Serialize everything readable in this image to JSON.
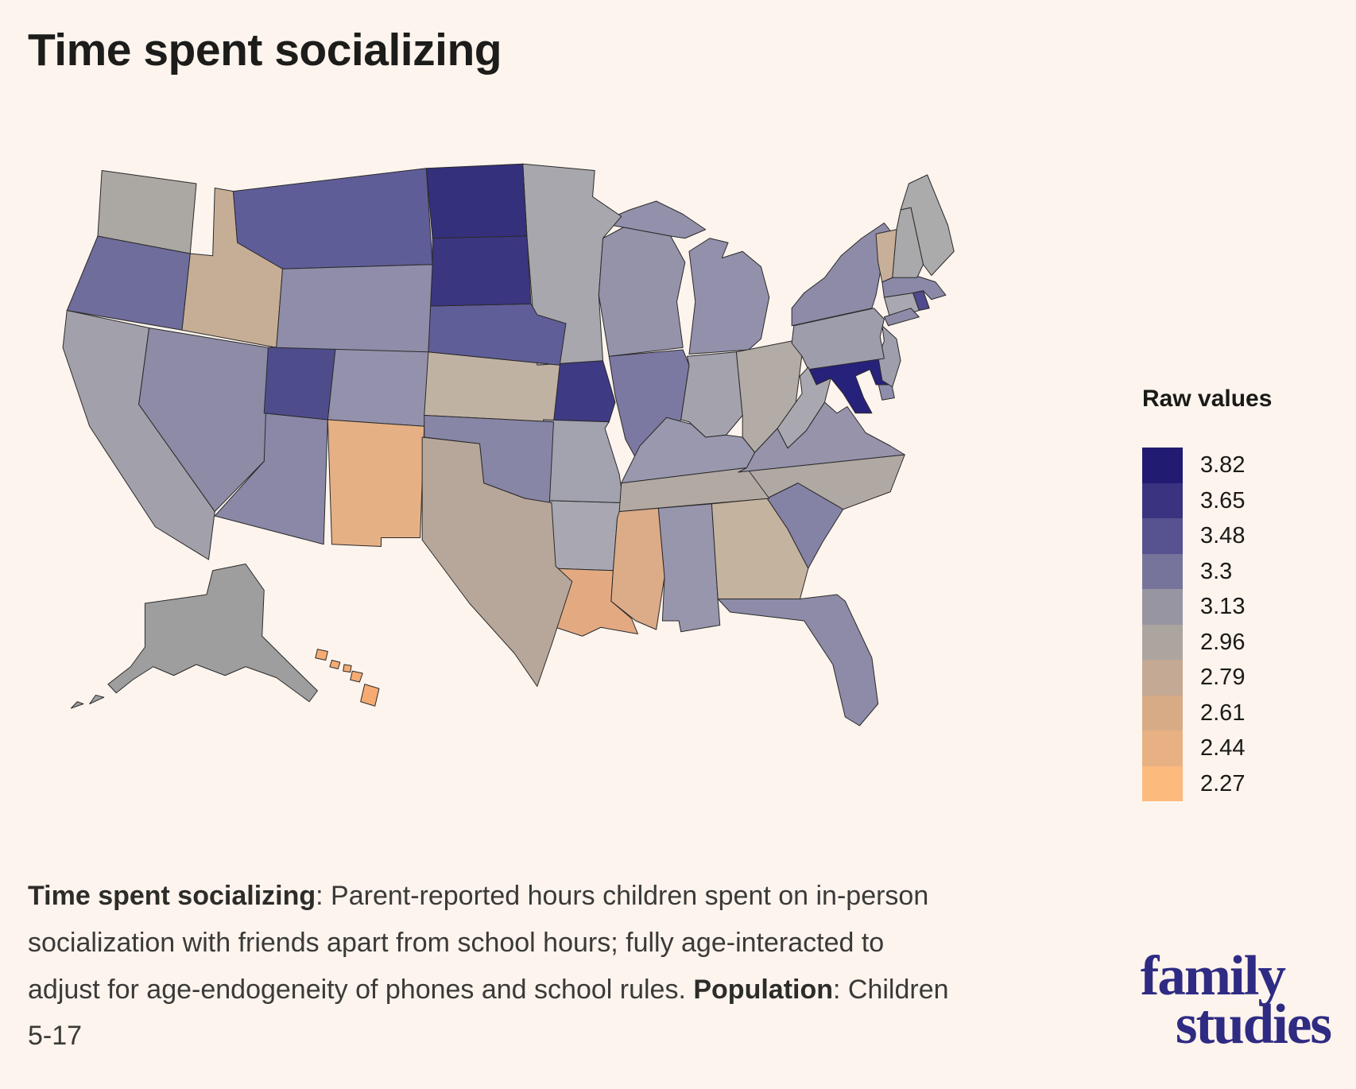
{
  "title": "Time spent socializing",
  "legend": {
    "title": "Raw values",
    "items": [
      {
        "label": "3.82",
        "color": "#221b72"
      },
      {
        "label": "3.65",
        "color": "#393380"
      },
      {
        "label": "3.48",
        "color": "#575390"
      },
      {
        "label": "3.3",
        "color": "#77749b"
      },
      {
        "label": "3.13",
        "color": "#9795a1"
      },
      {
        "label": "2.96",
        "color": "#aca49f"
      },
      {
        "label": "2.79",
        "color": "#c4a995"
      },
      {
        "label": "2.61",
        "color": "#d8ab87"
      },
      {
        "label": "2.44",
        "color": "#e8b183"
      },
      {
        "label": "2.27",
        "color": "#fcba7d"
      }
    ]
  },
  "caption": {
    "bold1": "Time spent socializing",
    "text1": ": Parent-reported hours children spent on in-person socialization with friends apart from school hours; fully age-interacted to adjust for age-endogeneity of phones and school rules. ",
    "bold2": "Population",
    "text2": ": Children 5-17"
  },
  "logo": {
    "line1": "family",
    "line2": "studies",
    "color": "#2f2b83"
  },
  "chart_data": {
    "type": "choropleth",
    "title": "Time spent socializing",
    "legend_title": "Raw values",
    "legend_values": [
      3.82,
      3.65,
      3.48,
      3.3,
      3.13,
      2.96,
      2.79,
      2.61,
      2.44,
      2.27
    ],
    "legend_colors": [
      "#221b72",
      "#393380",
      "#575390",
      "#77749b",
      "#9795a1",
      "#aca49f",
      "#c4a995",
      "#d8ab87",
      "#e8b183",
      "#fcba7d"
    ],
    "value_range": [
      2.27,
      3.82
    ],
    "background": "#fdf4ed",
    "states": [
      {
        "id": "AK",
        "name": "Alaska",
        "color": "#9e9e9e",
        "approx_value": 3.05
      },
      {
        "id": "AL",
        "name": "Alabama",
        "color": "#9896ac",
        "approx_value": 3.18
      },
      {
        "id": "AR",
        "name": "Arkansas",
        "color": "#a9a8b2",
        "approx_value": 3.12
      },
      {
        "id": "AZ",
        "name": "Arizona",
        "color": "#8a88a6",
        "approx_value": 3.28
      },
      {
        "id": "CA",
        "name": "California",
        "color": "#a2a1ab",
        "approx_value": 3.13
      },
      {
        "id": "CO",
        "name": "Colorado",
        "color": "#9391ab",
        "approx_value": 3.2
      },
      {
        "id": "CT",
        "name": "Connecticut",
        "color": "#a9a8b0",
        "approx_value": 3.13
      },
      {
        "id": "DE",
        "name": "Delaware",
        "color": "#8f8dac",
        "approx_value": 3.22
      },
      {
        "id": "FL",
        "name": "Florida",
        "color": "#8d8ba8",
        "approx_value": 3.25
      },
      {
        "id": "GA",
        "name": "Georgia",
        "color": "#c4b39f",
        "approx_value": 2.8
      },
      {
        "id": "HI",
        "name": "Hawaii",
        "color": "#f5ab72",
        "approx_value": 2.3
      },
      {
        "id": "IA",
        "name": "Iowa",
        "color": "#3e3a83",
        "approx_value": 3.68
      },
      {
        "id": "ID",
        "name": "Idaho",
        "color": "#c6ae96",
        "approx_value": 2.78
      },
      {
        "id": "IL",
        "name": "Illinois",
        "color": "#7b79a2",
        "approx_value": 3.35
      },
      {
        "id": "IN",
        "name": "Indiana",
        "color": "#a3a2ad",
        "approx_value": 3.12
      },
      {
        "id": "KS",
        "name": "Kansas",
        "color": "#c0b2a3",
        "approx_value": 2.8
      },
      {
        "id": "KY",
        "name": "Kentucky",
        "color": "#9a98ae",
        "approx_value": 3.17
      },
      {
        "id": "LA",
        "name": "Louisiana",
        "color": "#e3aa82",
        "approx_value": 2.45
      },
      {
        "id": "MA",
        "name": "Massachusetts",
        "color": "#8b89a7",
        "approx_value": 3.25
      },
      {
        "id": "MD",
        "name": "Maryland",
        "color": "#26217a",
        "approx_value": 3.82
      },
      {
        "id": "ME",
        "name": "Maine",
        "color": "#ababab",
        "approx_value": 3.1
      },
      {
        "id": "MI",
        "name": "Michigan",
        "color": "#9290aa",
        "approx_value": 3.2
      },
      {
        "id": "MN",
        "name": "Minnesota",
        "color": "#a8a7ad",
        "approx_value": 3.13
      },
      {
        "id": "MO",
        "name": "Missouri",
        "color": "#a3a2af",
        "approx_value": 3.13
      },
      {
        "id": "MS",
        "name": "Mississippi",
        "color": "#dcab88",
        "approx_value": 2.55
      },
      {
        "id": "MT",
        "name": "Montana",
        "color": "#5f5d98",
        "approx_value": 3.45
      },
      {
        "id": "NC",
        "name": "North Carolina",
        "color": "#b0a8a3",
        "approx_value": 2.95
      },
      {
        "id": "ND",
        "name": "North Dakota",
        "color": "#34307c",
        "approx_value": 3.75
      },
      {
        "id": "NE",
        "name": "Nebraska",
        "color": "#605e98",
        "approx_value": 3.45
      },
      {
        "id": "NH",
        "name": "New Hampshire",
        "color": "#a9a8ab",
        "approx_value": 3.12
      },
      {
        "id": "NJ",
        "name": "New Jersey",
        "color": "#9f9ead",
        "approx_value": 3.15
      },
      {
        "id": "NM",
        "name": "New Mexico",
        "color": "#e6b085",
        "approx_value": 2.5
      },
      {
        "id": "NV",
        "name": "Nevada",
        "color": "#8d8ba6",
        "approx_value": 3.25
      },
      {
        "id": "NY",
        "name": "New York",
        "color": "#8d8ba7",
        "approx_value": 3.25
      },
      {
        "id": "OH",
        "name": "Ohio",
        "color": "#b3aba5",
        "approx_value": 2.95
      },
      {
        "id": "OK",
        "name": "Oklahoma",
        "color": "#8886a6",
        "approx_value": 3.28
      },
      {
        "id": "OR",
        "name": "Oregon",
        "color": "#6f6d9c",
        "approx_value": 3.4
      },
      {
        "id": "PA",
        "name": "Pennsylvania",
        "color": "#9e9dac",
        "approx_value": 3.15
      },
      {
        "id": "RI",
        "name": "Rhode Island",
        "color": "#4f4b8c",
        "approx_value": 3.5
      },
      {
        "id": "SC",
        "name": "South Carolina",
        "color": "#8583a5",
        "approx_value": 3.3
      },
      {
        "id": "SD",
        "name": "South Dakota",
        "color": "#3b3680",
        "approx_value": 3.7
      },
      {
        "id": "TN",
        "name": "Tennessee",
        "color": "#b2a9a3",
        "approx_value": 2.95
      },
      {
        "id": "TX",
        "name": "Texas",
        "color": "#b7a79b",
        "approx_value": 2.85
      },
      {
        "id": "UT",
        "name": "Utah",
        "color": "#4f4c8c",
        "approx_value": 3.55
      },
      {
        "id": "VA",
        "name": "Virginia",
        "color": "#9693ab",
        "approx_value": 3.2
      },
      {
        "id": "VT",
        "name": "Vermont",
        "color": "#c7af9a",
        "approx_value": 2.78
      },
      {
        "id": "WA",
        "name": "Washington",
        "color": "#aba7a3",
        "approx_value": 3.0
      },
      {
        "id": "WI",
        "name": "Wisconsin",
        "color": "#9593aa",
        "approx_value": 3.2
      },
      {
        "id": "WV",
        "name": "West Virginia",
        "color": "#a9a8b1",
        "approx_value": 3.12
      },
      {
        "id": "WY",
        "name": "Wyoming",
        "color": "#8f8da9",
        "approx_value": 3.22
      }
    ]
  }
}
